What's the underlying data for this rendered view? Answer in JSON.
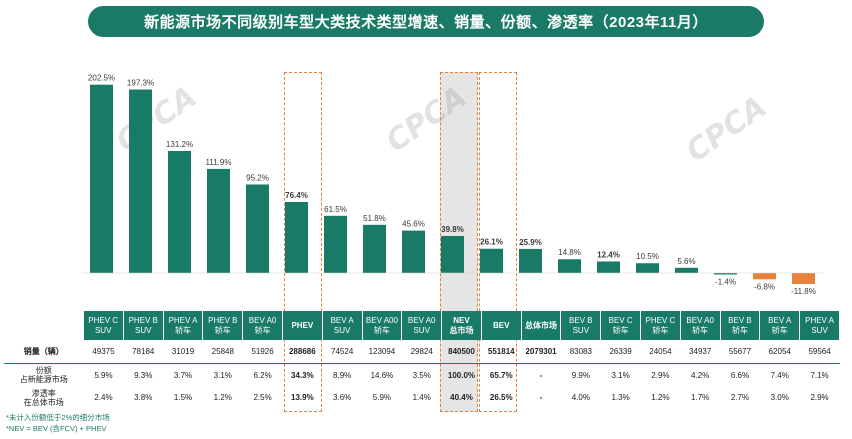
{
  "title": "新能源市场不同级别车型大类技术类型增速、销量、份额、渗透率（2023年11月）",
  "watermark": "CPCA",
  "chart_data": {
    "type": "bar",
    "categories": [
      "PHEV C SUV",
      "PHEV B SUV",
      "PHEV A 轿车",
      "PHEV B 轿车",
      "BEV A0 轿车",
      "PHEV",
      "BEV A SUV",
      "BEV A00 轿车",
      "BEV A0 SUV",
      "NEV 总市场",
      "BEV",
      "总体市场",
      "BEV B SUV",
      "BEV C 轿车",
      "PHEV C 轿车",
      "BEV A0 轿车",
      "BEV B 轿车",
      "BEV A 轿车",
      "PHEV A SUV"
    ],
    "values": [
      202.5,
      197.3,
      131.2,
      111.9,
      95.2,
      76.4,
      61.5,
      51.8,
      45.6,
      39.8,
      26.1,
      25.9,
      14.8,
      12.4,
      10.5,
      5.6,
      -1.4,
      -6.8,
      -11.8
    ],
    "value_labels": [
      "202.5%",
      "197.3%",
      "131.2%",
      "111.9%",
      "95.2%",
      "76.4%",
      "61.5%",
      "51.8%",
      "45.6%",
      "39.8%",
      "26.1%",
      "25.9%",
      "14.8%",
      "12.4%",
      "10.5%",
      "5.6%",
      "-1.4%",
      "-6.8%",
      "-11.8%"
    ],
    "unit": "%",
    "bar_color": "#1a7a68",
    "negative_color": "#e8823a",
    "ylim": [
      -15,
      205
    ]
  },
  "table": {
    "headers": [
      [
        "PHEV C",
        "SUV"
      ],
      [
        "PHEV B",
        "SUV"
      ],
      [
        "PHEV A",
        "轿车"
      ],
      [
        "PHEV B",
        "轿车"
      ],
      [
        "BEV A0",
        "轿车"
      ],
      [
        "PHEV"
      ],
      [
        "BEV A",
        "SUV"
      ],
      [
        "BEV A00",
        "轿车"
      ],
      [
        "BEV A0",
        "SUV"
      ],
      [
        "NEV",
        "总市场"
      ],
      [
        "BEV"
      ],
      [
        "总体市场"
      ],
      [
        "BEV B",
        "SUV"
      ],
      [
        "BEV C",
        "轿车"
      ],
      [
        "PHEV C",
        "轿车"
      ],
      [
        "BEV A0",
        "轿车"
      ],
      [
        "BEV B",
        "轿车"
      ],
      [
        "BEV A",
        "轿车"
      ],
      [
        "PHEV A",
        "SUV"
      ]
    ],
    "rows": [
      {
        "label": [
          "销量（辆）"
        ],
        "cells": [
          "49375",
          "78184",
          "31019",
          "25848",
          "51926",
          "288686",
          "74524",
          "123094",
          "29824",
          "840500",
          "551814",
          "2079301",
          "83083",
          "26339",
          "24054",
          "34937",
          "55677",
          "62054",
          "59564"
        ]
      },
      {
        "label": [
          "份额",
          "占新能源市场"
        ],
        "cells": [
          "5.9%",
          "9.3%",
          "3.7%",
          "3.1%",
          "6.2%",
          "34.3%",
          "8.9%",
          "14.6%",
          "3.5%",
          "100.0%",
          "65.7%",
          "-",
          "9.9%",
          "3.1%",
          "2.9%",
          "4.2%",
          "6.6%",
          "7.4%",
          "7.1%"
        ]
      },
      {
        "label": [
          "渗透率",
          "在总体市场"
        ],
        "cells": [
          "2.4%",
          "3.8%",
          "1.5%",
          "1.2%",
          "2.5%",
          "13.9%",
          "3.6%",
          "5.9%",
          "1.4%",
          "40.4%",
          "26.5%",
          "-",
          "4.0%",
          "1.3%",
          "1.2%",
          "1.7%",
          "2.7%",
          "3.0%",
          "2.9%"
        ]
      }
    ]
  },
  "footnotes": [
    "*未计入份额低于2%的细分市场",
    "*NEV = BEV (含FCV) + PHEV"
  ]
}
